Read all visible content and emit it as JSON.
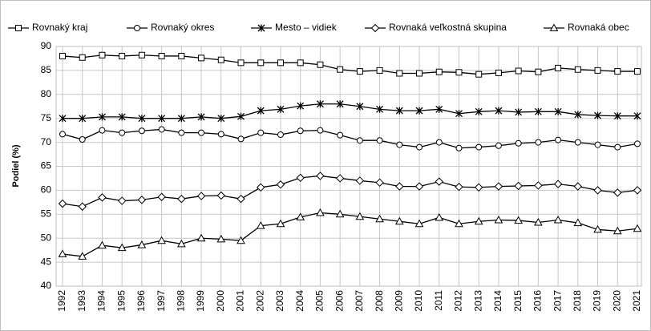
{
  "chart_data": {
    "type": "line",
    "y_label": "Podiel (%)",
    "categories": [
      "1992",
      "1993",
      "1994",
      "1995",
      "1996",
      "1997",
      "1998",
      "1999",
      "2000",
      "2001",
      "2002",
      "2003",
      "2004",
      "2005",
      "2006",
      "2007",
      "2008",
      "2009",
      "2010",
      "2011",
      "2012",
      "2013",
      "2014",
      "2015",
      "2016",
      "2017",
      "2018",
      "2019",
      "2020",
      "2021"
    ],
    "ylim": [
      40,
      90
    ],
    "yticks": [
      40,
      45,
      50,
      55,
      60,
      65,
      70,
      75,
      80,
      85,
      90
    ],
    "grid": true,
    "legend": "top",
    "series": [
      {
        "name": "Rovnaký kraj",
        "color": "#000000",
        "marker": "square",
        "values": [
          88,
          87.7,
          88.2,
          88,
          88.2,
          88,
          88,
          87.6,
          87.2,
          86.6,
          86.6,
          86.6,
          86.6,
          86.2,
          85.2,
          84.8,
          85,
          84.4,
          84.4,
          84.7,
          84.6,
          84.2,
          84.5,
          84.9,
          84.7,
          85.5,
          85.2,
          85,
          84.8,
          84.8
        ]
      },
      {
        "name": "Rovnaký okres",
        "color": "#000000",
        "marker": "circle",
        "values": [
          71.7,
          70.6,
          72.5,
          72,
          72.4,
          72.7,
          72,
          72,
          71.7,
          70.7,
          72,
          71.6,
          72.4,
          72.5,
          71.5,
          70.4,
          70.4,
          69.5,
          69,
          70,
          68.8,
          69,
          69.3,
          69.8,
          70,
          70.5,
          70,
          69.5,
          69,
          69.7
        ]
      },
      {
        "name": "Mesto – vidiek",
        "color": "#000000",
        "marker": "star",
        "values": [
          75,
          75,
          75.3,
          75.3,
          75,
          75,
          75,
          75.3,
          75,
          75.4,
          76.6,
          76.9,
          77.6,
          78,
          78,
          77.5,
          76.9,
          76.6,
          76.6,
          76.9,
          76,
          76.4,
          76.6,
          76.3,
          76.4,
          76.4,
          75.8,
          75.6,
          75.5,
          75.5
        ]
      },
      {
        "name": "Rovnaká veľkostná skupina",
        "color": "#000000",
        "marker": "diamond",
        "values": [
          57.2,
          56.6,
          58.5,
          57.8,
          58,
          58.6,
          58.2,
          58.8,
          58.9,
          58.2,
          60.6,
          61.2,
          62.6,
          63,
          62.5,
          62,
          61.6,
          60.8,
          60.8,
          61.8,
          60.7,
          60.6,
          60.8,
          60.9,
          61,
          61.3,
          60.8,
          60,
          59.5,
          60
        ]
      },
      {
        "name": "Rovnaká obec",
        "color": "#000000",
        "marker": "triangle",
        "values": [
          46.7,
          46.2,
          48.5,
          48,
          48.6,
          49.5,
          48.8,
          50,
          49.8,
          49.5,
          52.6,
          53,
          54.4,
          55.3,
          55,
          54.5,
          54,
          53.5,
          53,
          54.3,
          53,
          53.5,
          53.8,
          53.7,
          53.3,
          53.8,
          53.2,
          51.8,
          51.5,
          52
        ]
      }
    ]
  }
}
